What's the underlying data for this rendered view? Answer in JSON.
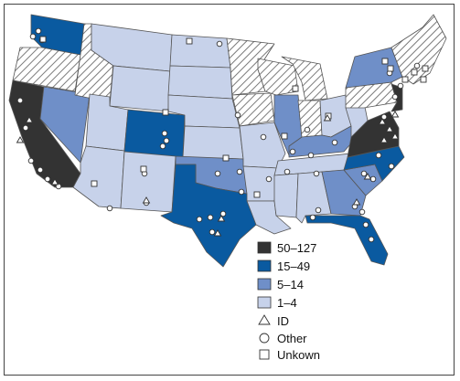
{
  "colors": {
    "c50_127": "#333333",
    "c15_49": "#0a5aa0",
    "c5_14": "#6f8fc8",
    "c1_4": "#c7d2ea",
    "hatch": "#8a8a8a",
    "border": "#444444"
  },
  "legend": {
    "items": [
      {
        "label": "50–127",
        "swatch": "c50_127"
      },
      {
        "label": "15–49",
        "swatch": "c15_49"
      },
      {
        "label": "5–14",
        "swatch": "c5_14"
      },
      {
        "label": "1–4",
        "swatch": "c1_4"
      }
    ],
    "markers": [
      {
        "label": "ID",
        "shape": "triangle"
      },
      {
        "label": "Other",
        "shape": "circle"
      },
      {
        "label": "Unkown",
        "shape": "square"
      }
    ]
  },
  "states": {
    "WA": {
      "category": "15–49"
    },
    "OR": {
      "category": "none"
    },
    "CA": {
      "category": "50–127"
    },
    "NV": {
      "category": "5–14"
    },
    "ID": {
      "category": "none"
    },
    "MT": {
      "category": "1–4"
    },
    "WY": {
      "category": "1–4"
    },
    "UT": {
      "category": "1–4"
    },
    "AZ": {
      "category": "1–4"
    },
    "CO": {
      "category": "15–49"
    },
    "NM": {
      "category": "1–4"
    },
    "ND": {
      "category": "1–4"
    },
    "SD": {
      "category": "1–4"
    },
    "NE": {
      "category": "1–4"
    },
    "KS": {
      "category": "1–4"
    },
    "OK": {
      "category": "5–14"
    },
    "TX": {
      "category": "15–49"
    },
    "MN": {
      "category": "none"
    },
    "IA": {
      "category": "none"
    },
    "MO": {
      "category": "1–4"
    },
    "AR": {
      "category": "1–4"
    },
    "LA": {
      "category": "1–4"
    },
    "WI": {
      "category": "none"
    },
    "IL": {
      "category": "5–14"
    },
    "MI": {
      "category": "none"
    },
    "IN": {
      "category": "none"
    },
    "OH": {
      "category": "1–4"
    },
    "KY": {
      "category": "5–14"
    },
    "TN": {
      "category": "1–4"
    },
    "MS": {
      "category": "1–4"
    },
    "AL": {
      "category": "1–4"
    },
    "GA": {
      "category": "5–14"
    },
    "FL": {
      "category": "15–49"
    },
    "SC": {
      "category": "5–14"
    },
    "NC": {
      "category": "15–49"
    },
    "VA": {
      "category": "50–127"
    },
    "WV": {
      "category": "1–4"
    },
    "PA": {
      "category": "none"
    },
    "NY": {
      "category": "5–14"
    },
    "NE_STATES": {
      "category": "none"
    }
  }
}
